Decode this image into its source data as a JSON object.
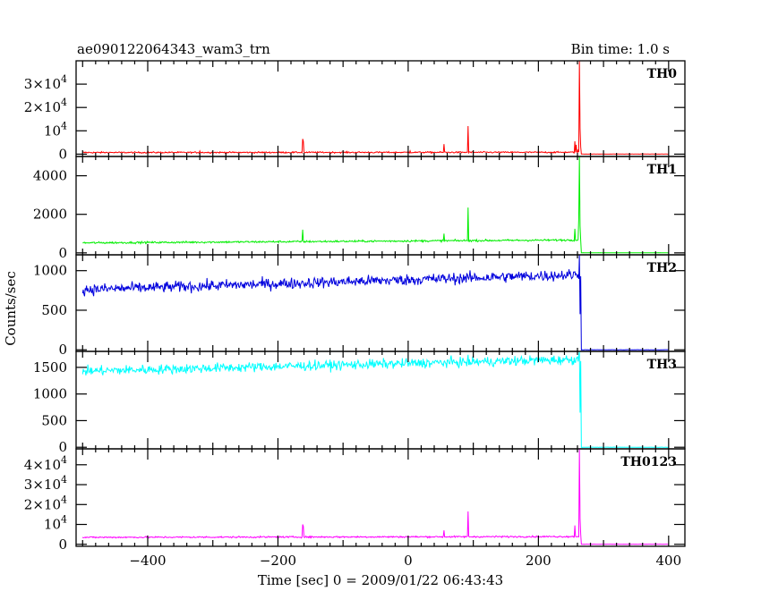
{
  "header": {
    "title": "ae090122064343_wam3_trn",
    "bin_time": "Bin time: 1.0 s"
  },
  "chart_data": {
    "type": "line",
    "title": "ae090122064343_wam3_trn",
    "xlabel": "Time [sec] 0 = 2009/01/22 06:43:43",
    "ylabel": "Counts/sec",
    "xlim": [
      -510,
      425
    ],
    "x_ticks": [
      -400,
      -200,
      0,
      200,
      400
    ],
    "x_tick_labels": [
      "−400",
      "−200",
      "0",
      "200",
      "400"
    ],
    "panels": [
      {
        "name": "TH0",
        "color": "#ff0000",
        "ylim": [
          -1000,
          40000
        ],
        "yticks": [
          0,
          10000,
          20000,
          30000
        ],
        "ytick_labels": [
          {
            "mantissa": "0",
            "exp": ""
          },
          {
            "mantissa": "10",
            "exp": "4"
          },
          {
            "mantissa": "2×10",
            "exp": "4"
          },
          {
            "mantissa": "3×10",
            "exp": "4"
          }
        ],
        "baseline": 700,
        "trend": 100,
        "noise": 150,
        "post_level": 30,
        "spikes": [
          {
            "t": -320,
            "v": 1400
          },
          {
            "t": -162,
            "v": 6500
          },
          {
            "t": -161,
            "v": 5500
          },
          {
            "t": 3,
            "v": 1400
          },
          {
            "t": 55,
            "v": 4300
          },
          {
            "t": 92,
            "v": 12000
          },
          {
            "t": 256,
            "v": 5500
          },
          {
            "t": 258,
            "v": 4000
          },
          {
            "t": 261,
            "v": 2000
          },
          {
            "t": 263,
            "v": 40000
          },
          {
            "t": 264,
            "v": 11000
          },
          {
            "t": 265,
            "v": 3000
          }
        ]
      },
      {
        "name": "TH1",
        "color": "#00ee00",
        "ylim": [
          -100,
          5000
        ],
        "yticks": [
          0,
          2000,
          4000
        ],
        "ytick_labels": [
          {
            "mantissa": "0",
            "exp": ""
          },
          {
            "mantissa": "2000",
            "exp": ""
          },
          {
            "mantissa": "4000",
            "exp": ""
          }
        ],
        "baseline": 520,
        "trend": 150,
        "noise": 25,
        "post_level": 5,
        "spikes": [
          {
            "t": -162,
            "v": 1200
          },
          {
            "t": 55,
            "v": 1000
          },
          {
            "t": 92,
            "v": 2350
          },
          {
            "t": 256,
            "v": 1250
          },
          {
            "t": 262,
            "v": 1800
          },
          {
            "t": 263,
            "v": 5000
          },
          {
            "t": 264,
            "v": 1400
          }
        ]
      },
      {
        "name": "TH2",
        "color": "#0000dd",
        "ylim": [
          -20,
          1200
        ],
        "yticks": [
          0,
          500,
          1000
        ],
        "ytick_labels": [
          {
            "mantissa": "0",
            "exp": ""
          },
          {
            "mantissa": "500",
            "exp": ""
          },
          {
            "mantissa": "1000",
            "exp": ""
          }
        ],
        "baseline": 760,
        "trend": 190,
        "noise": 35,
        "post_level": 0,
        "spikes": [
          {
            "t": 263,
            "v": 1200
          },
          {
            "t": 264,
            "v": 450
          }
        ]
      },
      {
        "name": "TH3",
        "color": "#00ffff",
        "ylim": [
          -30,
          1800
        ],
        "yticks": [
          0,
          500,
          1000,
          1500
        ],
        "ytick_labels": [
          {
            "mantissa": "0",
            "exp": ""
          },
          {
            "mantissa": "500",
            "exp": ""
          },
          {
            "mantissa": "1000",
            "exp": ""
          },
          {
            "mantissa": "1500",
            "exp": ""
          }
        ],
        "baseline": 1430,
        "trend": 220,
        "noise": 45,
        "post_level": 0,
        "spikes": [
          {
            "t": 263,
            "v": 1800
          },
          {
            "t": 264,
            "v": 650
          }
        ]
      },
      {
        "name": "TH0123",
        "color": "#ff00ff",
        "ylim": [
          -1000,
          48000
        ],
        "yticks": [
          0,
          10000,
          20000,
          30000,
          40000
        ],
        "ytick_labels": [
          {
            "mantissa": "0",
            "exp": ""
          },
          {
            "mantissa": "10",
            "exp": "4"
          },
          {
            "mantissa": "2×10",
            "exp": "4"
          },
          {
            "mantissa": "3×10",
            "exp": "4"
          },
          {
            "mantissa": "4×10",
            "exp": "4"
          }
        ],
        "baseline": 3500,
        "trend": 400,
        "noise": 200,
        "post_level": 40,
        "spikes": [
          {
            "t": -162,
            "v": 10000
          },
          {
            "t": -161,
            "v": 9000
          },
          {
            "t": 55,
            "v": 7000
          },
          {
            "t": 92,
            "v": 16500
          },
          {
            "t": 256,
            "v": 9500
          },
          {
            "t": 263,
            "v": 48000
          },
          {
            "t": 264,
            "v": 13000
          },
          {
            "t": 265,
            "v": 5000
          }
        ]
      }
    ],
    "burst_time": 263,
    "t_start": -500,
    "t_end": 400
  }
}
